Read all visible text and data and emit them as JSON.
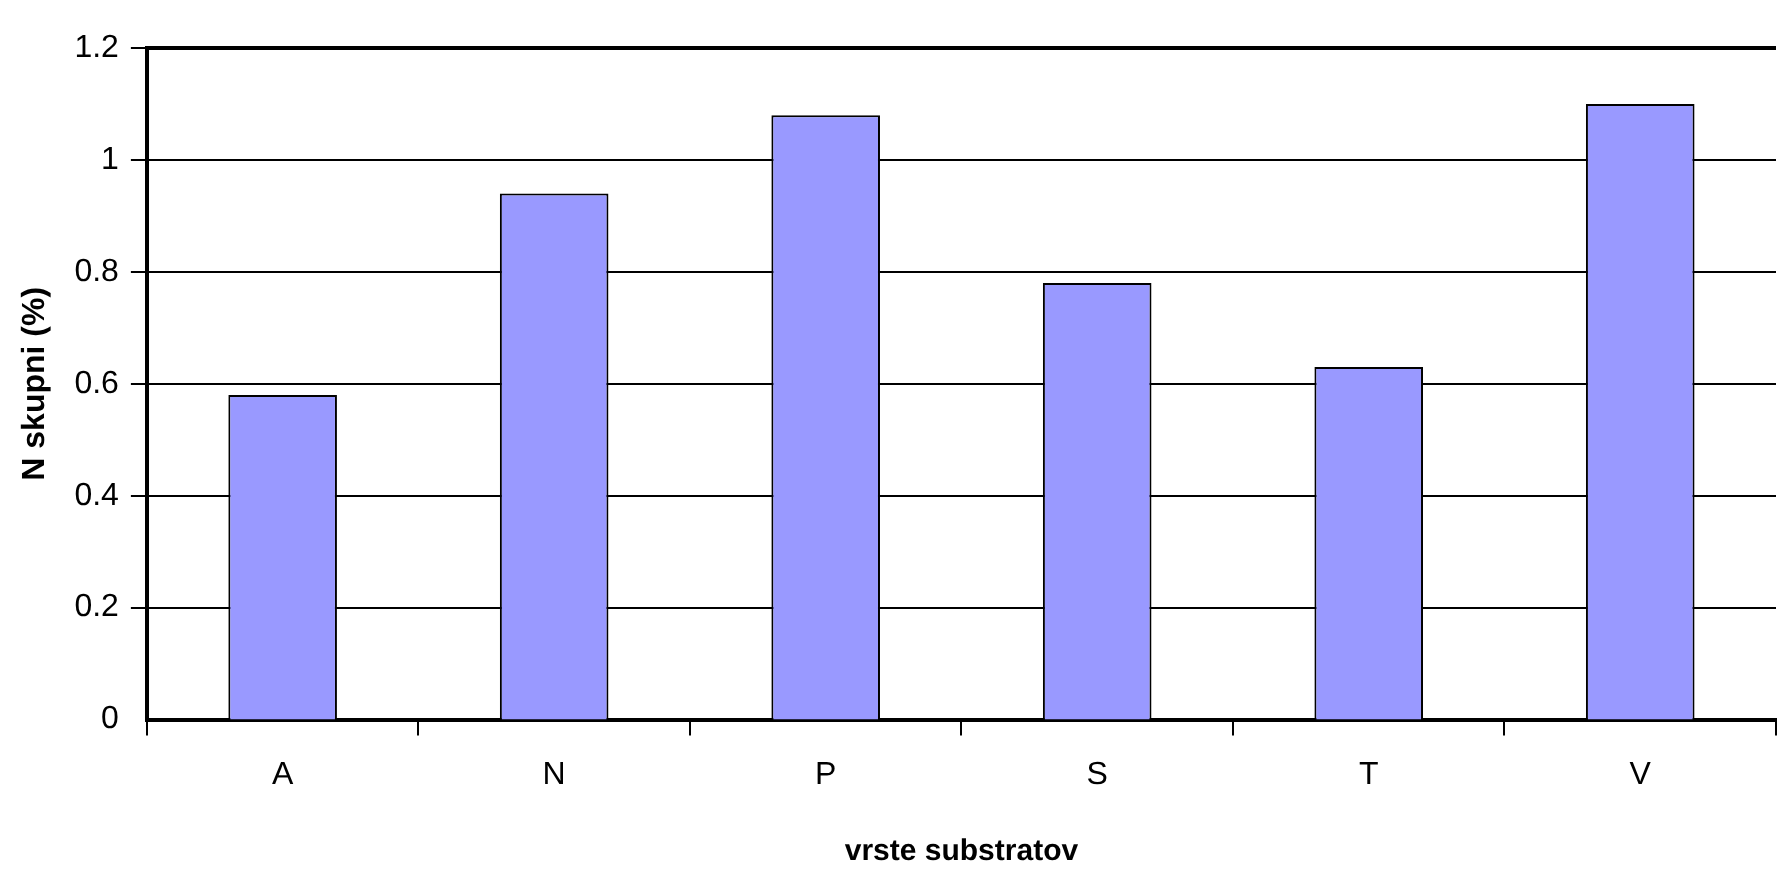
{
  "chart_data": {
    "type": "bar",
    "xlabel": "vrste substratov",
    "ylabel": "N skupni (%)",
    "categories": [
      "A",
      "N",
      "P",
      "S",
      "T",
      "V"
    ],
    "values": [
      0.58,
      0.94,
      1.08,
      0.78,
      0.63,
      1.1
    ],
    "color": "#9999ff",
    "ylim": [
      0,
      1.2
    ],
    "yticks": [
      0,
      0.2,
      0.4,
      0.6,
      0.8,
      1,
      1.2
    ],
    "grid": "y",
    "legend": false
  }
}
